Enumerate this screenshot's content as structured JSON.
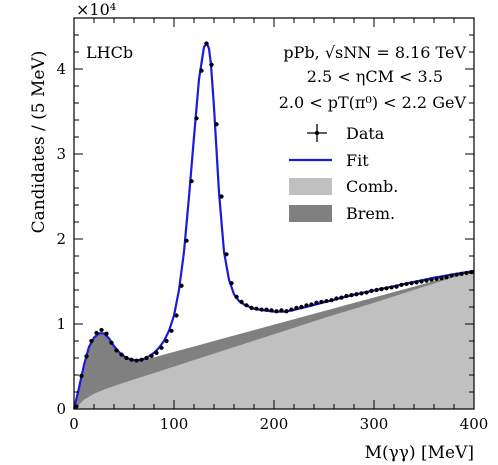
{
  "chart_data": {
    "type": "line",
    "xlabel": "M(γγ) [MeV]",
    "ylabel": "Candidates / (5 MeV)",
    "xlim": [
      0,
      400
    ],
    "ylim": [
      0,
      46000
    ],
    "y_multiplier": "×10⁴",
    "x_ticks": [
      0,
      100,
      200,
      300,
      400
    ],
    "y_ticks": [
      0,
      1,
      2,
      3,
      4
    ],
    "grid": false,
    "legend_position": "top-right",
    "annotations": {
      "experiment": "LHCb",
      "collision": "pPb, √sNN = 8.16 TeV",
      "eta_range": "2.5 < ηCM < 3.5",
      "pt_range": "2.0 < pT(π⁰) < 2.2 GeV"
    },
    "legend": [
      {
        "label": "Data",
        "kind": "errorbar",
        "color": "#000000"
      },
      {
        "label": "Fit",
        "kind": "line",
        "color": "#1a1adf"
      },
      {
        "label": "Comb.",
        "kind": "fill",
        "color": "#c0c0c0"
      },
      {
        "label": "Brem.",
        "kind": "fill",
        "color": "#808080"
      }
    ],
    "data": {
      "x": [
        2.5,
        7.5,
        12.5,
        17.5,
        22.5,
        27.5,
        32.5,
        37.5,
        42.5,
        47.5,
        52.5,
        57.5,
        62.5,
        67.5,
        72.5,
        77.5,
        82.5,
        87.5,
        92.5,
        97.5,
        102.5,
        107.5,
        112.5,
        117.5,
        122.5,
        127.5,
        132.5,
        137.5,
        142.5,
        147.5,
        152.5,
        157.5,
        162.5,
        167.5,
        172.5,
        177.5,
        182.5,
        187.5,
        192.5,
        197.5,
        202.5,
        207.5,
        212.5,
        217.5,
        222.5,
        227.5,
        232.5,
        237.5,
        242.5,
        247.5,
        252.5,
        257.5,
        262.5,
        267.5,
        272.5,
        277.5,
        282.5,
        287.5,
        292.5,
        297.5,
        302.5,
        307.5,
        312.5,
        317.5,
        322.5,
        327.5,
        332.5,
        337.5,
        342.5,
        347.5,
        352.5,
        357.5,
        362.5,
        367.5,
        372.5,
        377.5,
        382.5,
        387.5,
        392.5,
        397.5
      ],
      "y": [
        300,
        3900,
        6200,
        8000,
        8950,
        9300,
        8850,
        7800,
        6900,
        6400,
        6000,
        5800,
        5700,
        5800,
        6000,
        6250,
        6600,
        7200,
        8000,
        9200,
        11000,
        14500,
        19800,
        26800,
        34200,
        39800,
        43000,
        40500,
        33500,
        25000,
        18200,
        14800,
        13200,
        12600,
        12200,
        11900,
        11800,
        11700,
        11700,
        11600,
        11500,
        11600,
        11500,
        11700,
        11900,
        12000,
        12200,
        12300,
        12500,
        12600,
        12700,
        12800,
        13000,
        13100,
        13300,
        13400,
        13500,
        13600,
        13700,
        13900,
        14000,
        14100,
        14200,
        14300,
        14400,
        14600,
        14700,
        14800,
        14900,
        15000,
        15100,
        15200,
        15300,
        15400,
        15500,
        15700,
        15800,
        15900,
        16000,
        16100
      ]
    },
    "fit": {
      "x": [
        0,
        5,
        10,
        15,
        20,
        25,
        30,
        35,
        40,
        45,
        50,
        55,
        60,
        65,
        70,
        75,
        80,
        85,
        90,
        95,
        100,
        105,
        110,
        115,
        120,
        125,
        130,
        133,
        135,
        137,
        140,
        145,
        150,
        155,
        160,
        165,
        170,
        180,
        190,
        200,
        210,
        220,
        230,
        240,
        250,
        260,
        270,
        280,
        290,
        300,
        310,
        320,
        330,
        340,
        350,
        360,
        370,
        380,
        390,
        400
      ],
      "y": [
        0,
        2500,
        5200,
        7300,
        8400,
        8900,
        8900,
        8300,
        7400,
        6700,
        6200,
        5900,
        5750,
        5750,
        5900,
        6200,
        6600,
        7200,
        8000,
        9200,
        11000,
        14000,
        18500,
        25000,
        32000,
        38800,
        42600,
        43000,
        42400,
        40500,
        35500,
        25500,
        18500,
        15200,
        13500,
        12700,
        12300,
        11800,
        11600,
        11450,
        11450,
        11650,
        11950,
        12250,
        12550,
        12850,
        13150,
        13450,
        13700,
        13950,
        14200,
        14450,
        14700,
        14950,
        15200,
        15450,
        15650,
        15850,
        16050,
        16250
      ]
    },
    "comb": {
      "x": [
        0,
        5,
        10,
        20,
        30,
        50,
        75,
        100,
        150,
        200,
        250,
        300,
        350,
        400
      ],
      "y": [
        0,
        500,
        1100,
        1800,
        2300,
        3100,
        4050,
        5000,
        6900,
        8800,
        10700,
        12500,
        14400,
        16250
      ]
    },
    "brem": {
      "x": [
        0,
        5,
        10,
        15,
        20,
        25,
        30,
        35,
        40,
        45,
        50,
        55,
        60,
        65,
        70,
        75,
        80,
        85,
        90,
        95,
        100,
        110,
        120,
        140,
        160,
        180,
        200,
        220,
        240,
        260,
        280,
        300,
        320,
        340,
        360,
        380,
        400
      ],
      "y": [
        0,
        2500,
        5200,
        7300,
        8400,
        8900,
        8900,
        8300,
        7400,
        6700,
        6200,
        5900,
        5750,
        5750,
        5900,
        5960,
        6080,
        6240,
        6400,
        6560,
        6720,
        7040,
        7360,
        8000,
        8640,
        9280,
        9920,
        10560,
        11200,
        11840,
        12480,
        13120,
        13760,
        14400,
        15040,
        15680,
        16250
      ]
    }
  }
}
